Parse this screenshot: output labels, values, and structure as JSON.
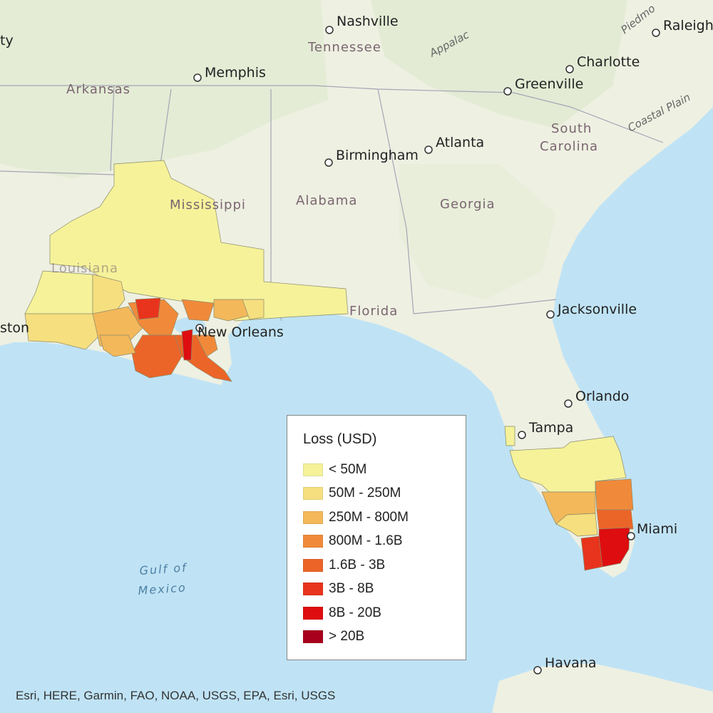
{
  "legend": {
    "title": "Loss (USD)",
    "items": [
      {
        "label": "< 50M",
        "color": "#f5f29a"
      },
      {
        "label": "50M - 250M",
        "color": "#f6df7f"
      },
      {
        "label": "250M - 800M",
        "color": "#f3b85a"
      },
      {
        "label": "800M - 1.6B",
        "color": "#f08a3a"
      },
      {
        "label": "1.6B - 3B",
        "color": "#ec6528"
      },
      {
        "label": "3B - 8B",
        "color": "#e8341c"
      },
      {
        "label": "8B - 20B",
        "color": "#de0d10"
      },
      {
        "label": "> 20B",
        "color": "#a8001c"
      }
    ]
  },
  "cities": {
    "nashville": "Nashville",
    "memphis": "Memphis",
    "charlotte": "Charlotte",
    "raleigh": "Raleigh",
    "greenville": "Greenville",
    "atlanta": "Atlanta",
    "birmingham": "Birmingham",
    "jacksonville": "Jacksonville",
    "new_orleans": "New Orleans",
    "orlando": "Orlando",
    "tampa": "Tampa",
    "miami": "Miami",
    "havana": "Havana",
    "houston_fragment": "ston",
    "memphis_left_fragment": "ty"
  },
  "states": {
    "tennessee": "Tennessee",
    "arkansas": "Arkansas",
    "mississippi": "Mississippi",
    "alabama": "Alabama",
    "georgia": "Georgia",
    "south_carolina_1": "South",
    "south_carolina_2": "Carolina",
    "louisiana": "Louisiana",
    "florida": "Florida"
  },
  "regions": {
    "appalachian": "Appalac",
    "coastal_plain": "Coastal Plain",
    "piedmont": "Piedmo"
  },
  "water": {
    "gulf_1": "Gulf of",
    "gulf_2": "Mexico"
  },
  "attribution": "Esri, HERE, Garmin, FAO, NOAA, USGS, EPA, Esri, USGS"
}
